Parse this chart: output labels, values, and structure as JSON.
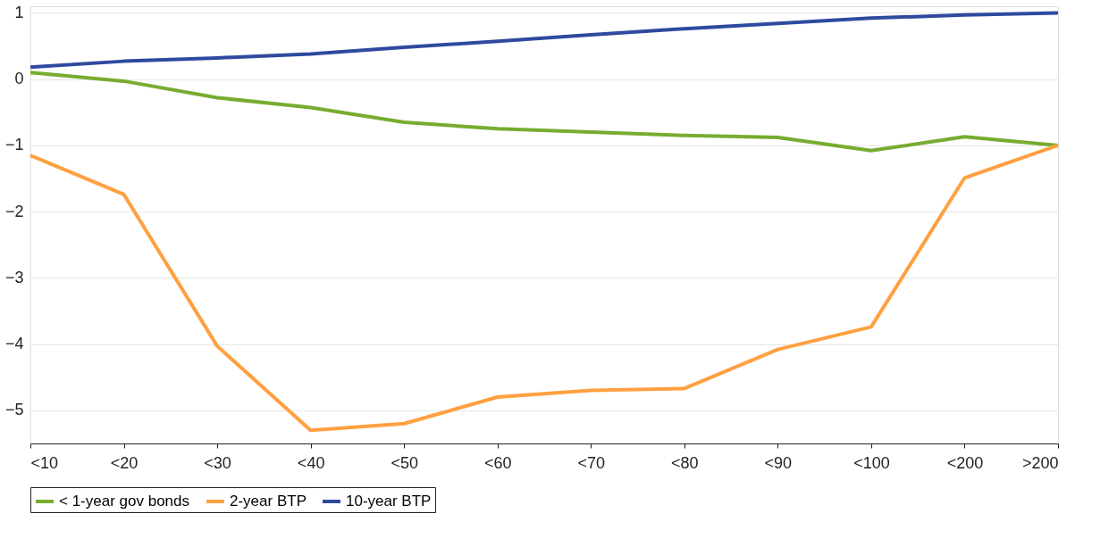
{
  "chart_data": {
    "type": "line",
    "categories": [
      "<10",
      "<20",
      "<30",
      "<40",
      "<50",
      "<60",
      "<70",
      "<80",
      "<90",
      "<100",
      "<200",
      ">200"
    ],
    "ylim": [
      -5.5,
      1.1
    ],
    "yticks": [
      -5,
      -4,
      -3,
      -2,
      -1,
      0,
      1
    ],
    "grid": "y",
    "legend": "bottom",
    "marker": "none",
    "line_style": "solid",
    "series": [
      {
        "name": "< 1-year gov bonds",
        "color": "#77ac30",
        "values": [
          0.1,
          -0.03,
          -0.28,
          -0.43,
          -0.65,
          -0.75,
          -0.8,
          -0.85,
          -0.88,
          -1.08,
          -0.87,
          -1.0
        ]
      },
      {
        "name": "2-year BTP",
        "color": "#ffa040",
        "values": [
          -1.15,
          -1.74,
          -4.03,
          -5.3,
          -5.2,
          -4.8,
          -4.7,
          -4.67,
          -4.08,
          -3.74,
          -1.49,
          -1.0
        ]
      },
      {
        "name": "10-year BTP",
        "color": "#2e4a9e",
        "values": [
          0.18,
          0.27,
          0.32,
          0.38,
          0.48,
          0.57,
          0.67,
          0.76,
          0.84,
          0.92,
          0.97,
          1.0
        ]
      }
    ]
  }
}
